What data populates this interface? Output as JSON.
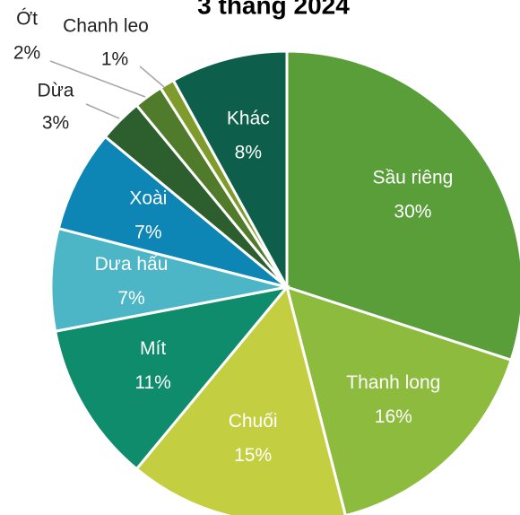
{
  "chart_data": {
    "type": "pie",
    "title": "3 tháng 2024",
    "categories": [
      "Sầu riêng",
      "Thanh long",
      "Chuối",
      "Mít",
      "Dưa hấu",
      "Xoài",
      "Dừa",
      "Ớt",
      "Chanh leo",
      "Khác"
    ],
    "values": [
      30,
      16,
      15,
      11,
      7,
      7,
      3,
      2,
      1,
      8
    ],
    "value_labels": [
      "30%",
      "16%",
      "15%",
      "11%",
      "7%",
      "7%",
      "3%",
      "2%",
      "1%",
      "8%"
    ],
    "colors": [
      "#5a9e3a",
      "#8dbb3d",
      "#c3cf40",
      "#0e8c6b",
      "#4db6c6",
      "#0d86b5",
      "#2d5e2e",
      "#4f7b2b",
      "#7f9b2c",
      "#0d5e4a"
    ]
  }
}
